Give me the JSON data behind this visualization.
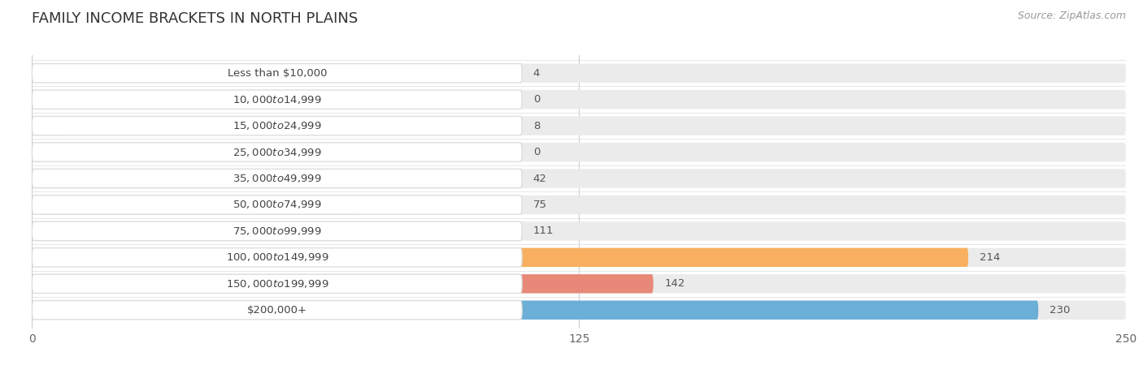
{
  "title": "FAMILY INCOME BRACKETS IN NORTH PLAINS",
  "source": "Source: ZipAtlas.com",
  "categories": [
    "Less than $10,000",
    "$10,000 to $14,999",
    "$15,000 to $24,999",
    "$25,000 to $34,999",
    "$35,000 to $49,999",
    "$50,000 to $74,999",
    "$75,000 to $99,999",
    "$100,000 to $149,999",
    "$150,000 to $199,999",
    "$200,000+"
  ],
  "values": [
    4,
    0,
    8,
    0,
    42,
    75,
    111,
    214,
    142,
    230
  ],
  "colors": [
    "#F9C98A",
    "#F4A0A0",
    "#A8C8F0",
    "#D4A8D4",
    "#70C8C0",
    "#A8A0E0",
    "#F080B0",
    "#F8B060",
    "#E88878",
    "#6BAED6"
  ],
  "xlim": [
    0,
    250
  ],
  "xticks": [
    0,
    125,
    250
  ],
  "background_color": "#ffffff",
  "bar_background": "#ebebeb",
  "title_fontsize": 13,
  "label_fontsize": 9.5,
  "value_fontsize": 9.5,
  "source_fontsize": 9
}
